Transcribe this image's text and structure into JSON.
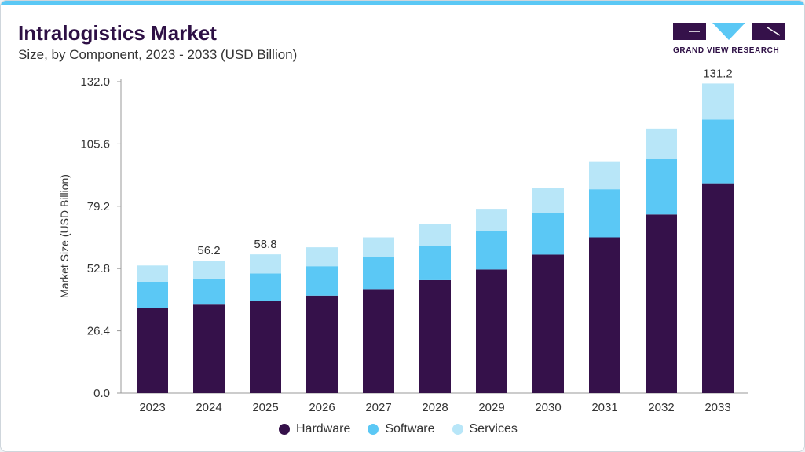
{
  "header": {
    "title": "Intralogistics Market",
    "subtitle": "Size, by Component, 2023 - 2033 (USD Billion)",
    "brand": "GRAND VIEW RESEARCH"
  },
  "colors": {
    "accent": "#5bc8f5",
    "title": "#2e1045"
  },
  "chart_data": {
    "type": "bar",
    "stacked": true,
    "ylabel": "Market Size (USD Billion)",
    "xlabel": "",
    "ylim": [
      0,
      132
    ],
    "yticks": [
      "0.0",
      "26.4",
      "52.8",
      "79.2",
      "105.6",
      "132.0"
    ],
    "categories": [
      "2023",
      "2024",
      "2025",
      "2026",
      "2027",
      "2028",
      "2029",
      "2030",
      "2031",
      "2032",
      "2033"
    ],
    "series": [
      {
        "name": "Hardware",
        "color": "#35114a",
        "values": [
          36.1,
          37.5,
          39.2,
          41.3,
          44.1,
          47.9,
          52.4,
          58.7,
          66.0,
          75.7,
          88.9
        ]
      },
      {
        "name": "Software",
        "color": "#5bc8f5",
        "values": [
          10.8,
          11.1,
          11.5,
          12.5,
          13.5,
          14.6,
          16.3,
          17.7,
          20.4,
          23.6,
          27.0
        ]
      },
      {
        "name": "Services",
        "color": "#b8e6f8",
        "values": [
          7.2,
          7.6,
          8.1,
          8.0,
          8.4,
          9.0,
          9.4,
          10.7,
          11.8,
          12.8,
          15.3
        ]
      }
    ],
    "data_labels": [
      {
        "category": "2024",
        "text": "56.2"
      },
      {
        "category": "2025",
        "text": "58.8"
      },
      {
        "category": "2033",
        "text": "131.2"
      }
    ],
    "grid": false,
    "legend": "bottom"
  }
}
